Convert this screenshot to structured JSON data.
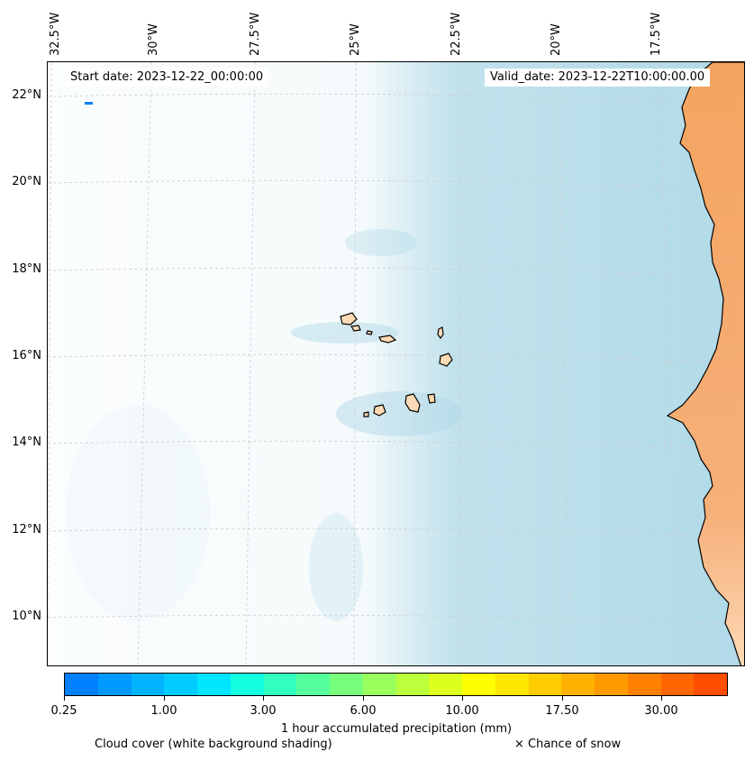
{
  "header": {
    "start_date": "Start date: 2023-12-22_00:00:00",
    "valid_date": "Valid_date: 2023-12-22T10:00:00.00"
  },
  "axes": {
    "lon_labels": [
      "32.5°W",
      "30°W",
      "27.5°W",
      "25°W",
      "22.5°W",
      "20°W",
      "17.5°W"
    ],
    "lat_labels": [
      "22°N",
      "20°N",
      "18°N",
      "16°N",
      "14°N",
      "12°N",
      "10°N"
    ]
  },
  "colorbar": {
    "label": "1 hour accumulated precipitation (mm)",
    "ticks": [
      "0.25",
      "1.00",
      "3.00",
      "6.00",
      "10.00",
      "17.50",
      "30.00"
    ],
    "colors": [
      "#0080ff",
      "#0099ff",
      "#00b3ff",
      "#00ccff",
      "#00e6ff",
      "#14ffe0",
      "#33ffbe",
      "#55ff9b",
      "#77ff7c",
      "#99ff5c",
      "#bbff3d",
      "#ddff1e",
      "#ffff00",
      "#ffe600",
      "#ffcc00",
      "#ffb300",
      "#ff9900",
      "#ff8000",
      "#ff6600",
      "#ff4d00"
    ]
  },
  "legend": {
    "cloud_cover": "Cloud cover (white background shading)",
    "snow": "× Chance of snow"
  },
  "colors": {
    "cloud": "#add8e6",
    "land_dark": "#f4a460",
    "land_light": "#fdd9b5",
    "coast": "#000000",
    "grid": "#cccccc"
  }
}
